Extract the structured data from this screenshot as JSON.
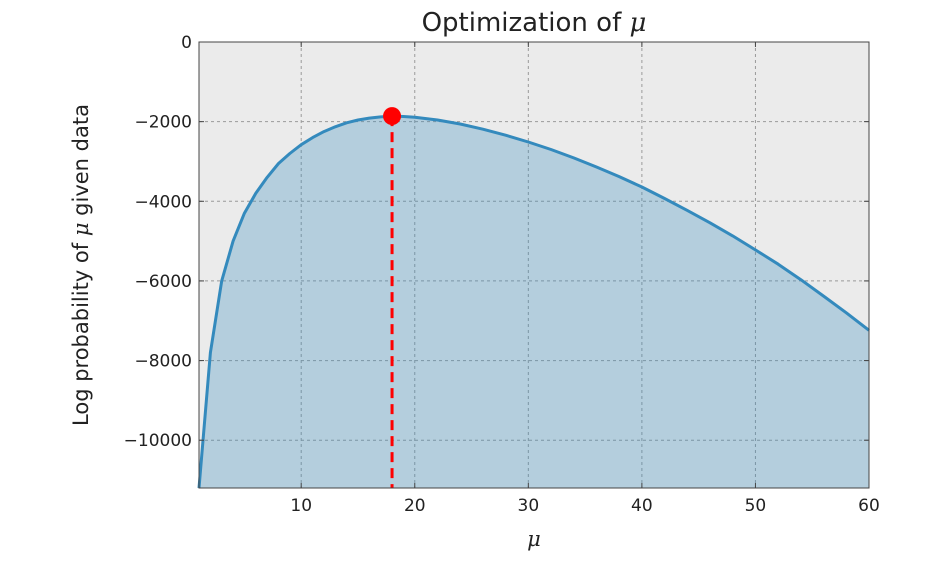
{
  "chart_data": {
    "type": "area",
    "title_prefix": "Optimization of ",
    "title_symbol": "μ",
    "xlabel": "μ",
    "ylabel_prefix": "Log probability of ",
    "ylabel_symbol": "μ",
    "ylabel_suffix": " given data",
    "xlim": [
      1,
      60
    ],
    "ylim": [
      -11200,
      0
    ],
    "xticks": [
      10,
      20,
      30,
      40,
      50,
      60
    ],
    "yticks": [
      0,
      -2000,
      -4000,
      -6000,
      -8000,
      -10000
    ],
    "ytick_labels": [
      "0",
      "−2000",
      "−4000",
      "−6000",
      "−8000",
      "−10000"
    ],
    "grid": true,
    "series": [
      {
        "x": [
          1,
          2,
          3,
          4,
          5,
          6,
          7,
          8,
          9,
          10,
          11,
          12,
          13,
          14,
          15,
          16,
          17,
          18,
          19,
          20,
          22,
          24,
          26,
          28,
          30,
          32,
          34,
          36,
          38,
          40,
          42,
          44,
          46,
          48,
          50,
          52,
          54,
          56,
          58,
          60
        ],
        "y": [
          -11200,
          -7800,
          -6000,
          -5000,
          -4300,
          -3800,
          -3400,
          -3050,
          -2800,
          -2580,
          -2400,
          -2250,
          -2130,
          -2030,
          -1960,
          -1910,
          -1880,
          -1860,
          -1870,
          -1890,
          -1960,
          -2060,
          -2190,
          -2340,
          -2510,
          -2700,
          -2910,
          -3140,
          -3380,
          -3640,
          -3930,
          -4230,
          -4540,
          -4870,
          -5220,
          -5580,
          -5970,
          -6380,
          -6800,
          -7240
        ],
        "color": "#348abd",
        "fill_color": "#348abd",
        "fill_opacity": 0.3
      }
    ],
    "marker": {
      "x": 18,
      "y": -1860,
      "color": "#ff0000",
      "line_style": "dashed"
    },
    "plot_background": "#ebebeb",
    "grid_color": "#9a9a9a"
  }
}
